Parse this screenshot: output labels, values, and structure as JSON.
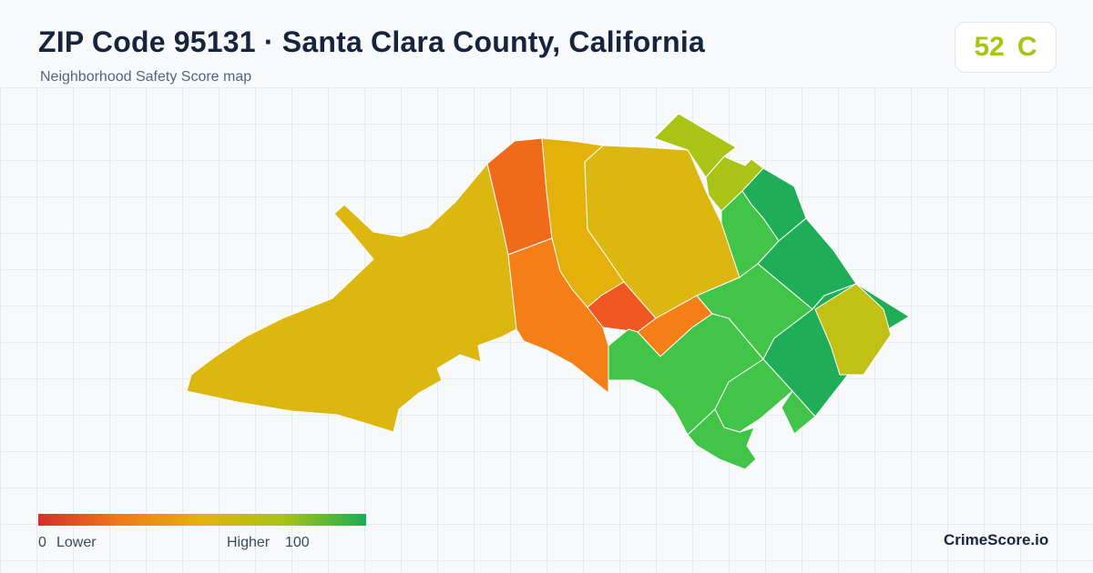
{
  "header": {
    "title": "ZIP Code 95131 · Santa Clara County, California",
    "subtitle": "Neighborhood Safety Score map"
  },
  "score_badge": {
    "score": "52",
    "grade": "C",
    "color": "#a9c414"
  },
  "legend": {
    "min": "0",
    "min_label": "Lower",
    "max_label": "Higher",
    "max": "100",
    "colors": [
      "#d92d2d",
      "#f07a1a",
      "#e2b30c",
      "#a7c414",
      "#1bac55"
    ]
  },
  "brand": "CrimeScore.io",
  "map": {
    "regions": [
      {
        "name": "west-large-area",
        "color": "#dbb70f"
      },
      {
        "name": "west-central-strip",
        "color": "#f06a1a"
      },
      {
        "name": "central-narrow-strip",
        "color": "#e4b00c"
      },
      {
        "name": "north-central-area",
        "color": "#dbb70f"
      },
      {
        "name": "south-central-strip",
        "color": "#f57f17"
      },
      {
        "name": "central-small-area",
        "color": "#f0561f"
      },
      {
        "name": "central-east-area",
        "color": "#f57f17"
      },
      {
        "name": "north-small-1",
        "color": "#a9c414"
      },
      {
        "name": "north-small-2",
        "color": "#a9c414"
      },
      {
        "name": "northeast-area",
        "color": "#1fae57"
      },
      {
        "name": "east-center-area",
        "color": "#41c448"
      },
      {
        "name": "east-block-1",
        "color": "#1fae57"
      },
      {
        "name": "center-east-area",
        "color": "#41c448"
      },
      {
        "name": "south-east-area",
        "color": "#41c448"
      },
      {
        "name": "east-block-2",
        "color": "#1fae57"
      },
      {
        "name": "east-yellow-area",
        "color": "#c1c015"
      },
      {
        "name": "south-area-1",
        "color": "#41c448"
      },
      {
        "name": "south-area-2",
        "color": "#41c448"
      },
      {
        "name": "south-small",
        "color": "#41c448"
      }
    ]
  }
}
